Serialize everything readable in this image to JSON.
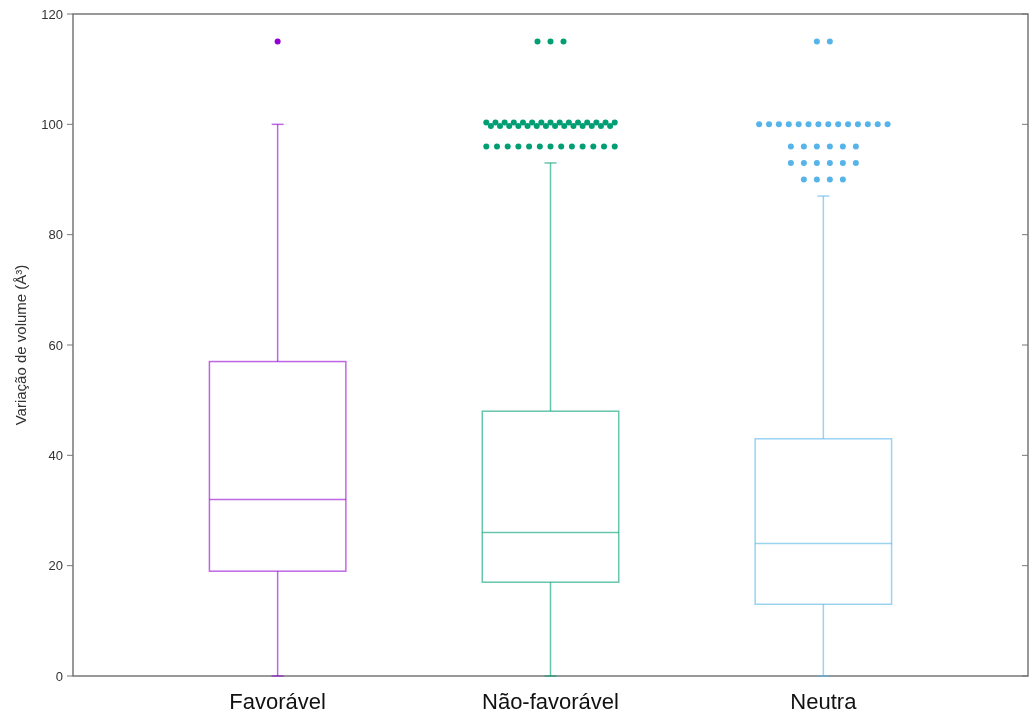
{
  "chart_data": {
    "type": "box",
    "ylabel": "Variação de volume  (Å³)",
    "categories": [
      "Favorável",
      "Não-favorável",
      "Neutra"
    ],
    "colors": [
      "#9400d3",
      "#009e73",
      "#56b4e9"
    ],
    "boxes": [
      {
        "low": 0,
        "q1": 19,
        "median": 32,
        "q3": 57,
        "high": 100,
        "outliers": [
          115
        ]
      },
      {
        "low": 0,
        "q1": 17,
        "median": 26,
        "q3": 48,
        "high": 93,
        "outliers": [
          115,
          115,
          115,
          100,
          100,
          100,
          100,
          100,
          100,
          100,
          100,
          100,
          100,
          100,
          100,
          100,
          100,
          100,
          100,
          100,
          100,
          100,
          100,
          100,
          100,
          100,
          100,
          100,
          100,
          100,
          100,
          100,
          96,
          96,
          96,
          96,
          96,
          96,
          96,
          96,
          96,
          96,
          96,
          96,
          96
        ]
      },
      {
        "low": 0,
        "q1": 13,
        "median": 24,
        "q3": 43,
        "high": 87,
        "outliers": [
          115,
          115,
          100,
          100,
          100,
          100,
          100,
          100,
          100,
          100,
          100,
          100,
          100,
          100,
          100,
          100,
          96,
          96,
          96,
          96,
          96,
          96,
          93,
          93,
          93,
          93,
          93,
          93,
          90,
          90,
          90,
          90
        ]
      }
    ],
    "ylim": [
      0,
      120
    ],
    "yticks": [
      0,
      20,
      40,
      60,
      80,
      100,
      120
    ],
    "grid": false
  }
}
